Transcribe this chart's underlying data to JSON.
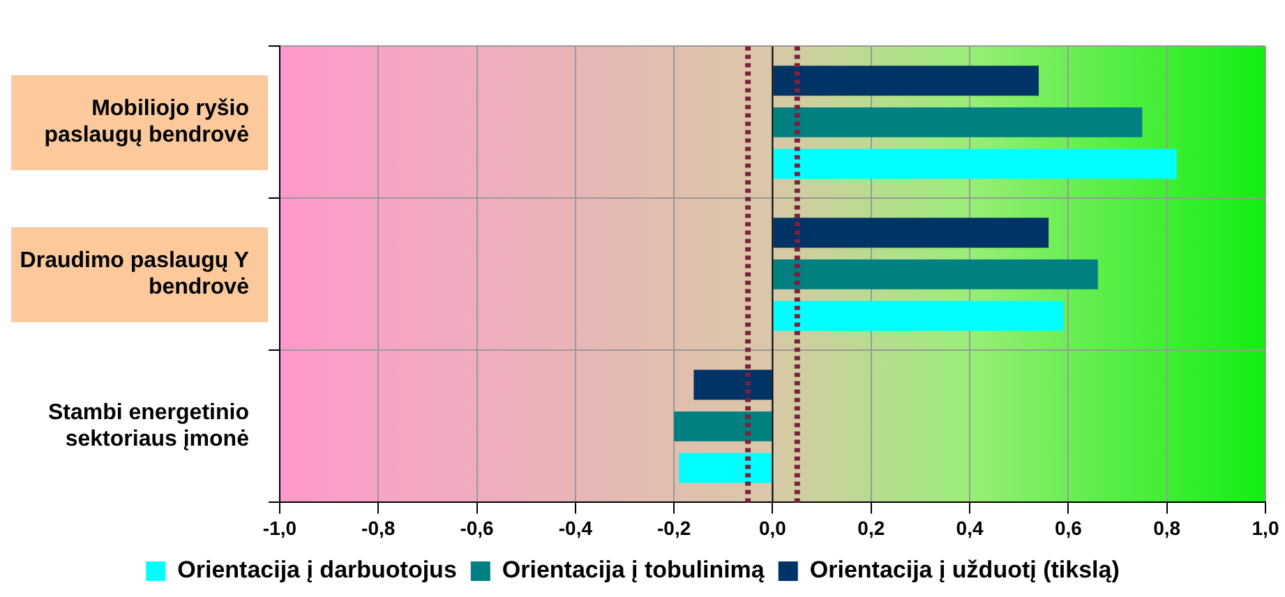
{
  "chart_data": {
    "type": "bar",
    "orientation": "horizontal",
    "categories": [
      "Mobiliojo ryšio paslaugų bendrovė",
      "Draudimo paslaugų Y bendrovė",
      "Stambi energetinio sektoriaus įmonė"
    ],
    "series": [
      {
        "name": "Orientacija į darbuotojus",
        "color": "#00ffff",
        "values": [
          0.82,
          0.59,
          -0.19
        ]
      },
      {
        "name": "Orientacija į tobulinimą",
        "color": "#008080",
        "values": [
          0.75,
          0.66,
          -0.2
        ]
      },
      {
        "name": "Orientacija į užduotį (tikslą)",
        "color": "#003366",
        "values": [
          0.54,
          0.56,
          -0.16
        ]
      }
    ],
    "xlim": [
      -1,
      1
    ],
    "xticks": [
      {
        "value": -1,
        "label": "-1,0"
      },
      {
        "value": -0.8,
        "label": "-0,8"
      },
      {
        "value": -0.6,
        "label": "-0,6"
      },
      {
        "value": -0.4,
        "label": "-0,4"
      },
      {
        "value": -0.2,
        "label": "-0,2"
      },
      {
        "value": 0,
        "label": "0,0"
      },
      {
        "value": 0.2,
        "label": "0,2"
      },
      {
        "value": 0.4,
        "label": "0,4"
      },
      {
        "value": 0.6,
        "label": "0,6"
      },
      {
        "value": 0.8,
        "label": "0,8"
      },
      {
        "value": 1,
        "label": "1,0"
      }
    ],
    "ref_lines": [
      {
        "axis": "x",
        "value": -0.05,
        "color": "#7f1f3f",
        "line_style": "dotted"
      },
      {
        "axis": "x",
        "value": 0.05,
        "color": "#7f1f3f",
        "line_style": "dotted"
      }
    ],
    "grid": true,
    "legend": "bottom"
  }
}
